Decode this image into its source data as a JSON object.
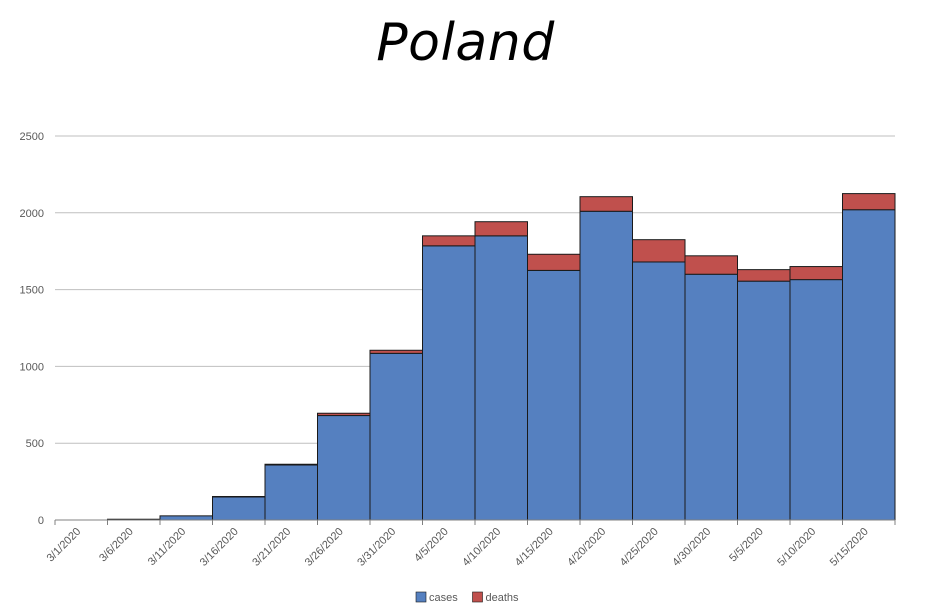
{
  "chart_data": {
    "type": "bar",
    "stacked": true,
    "title": "Poland",
    "xlabel": "",
    "ylabel": "",
    "ylim": [
      0,
      2500
    ],
    "yticks": [
      0,
      500,
      1000,
      1500,
      2000,
      2500
    ],
    "grid": true,
    "legend_position": "bottom",
    "categories": [
      "3/1/2020",
      "3/6/2020",
      "3/11/2020",
      "3/16/2020",
      "3/21/2020",
      "3/26/2020",
      "3/31/2020",
      "4/5/2020",
      "4/10/2020",
      "4/15/2020",
      "4/20/2020",
      "4/25/2020",
      "4/30/2020",
      "5/5/2020",
      "5/10/2020",
      "5/15/2020"
    ],
    "series": [
      {
        "name": "cases",
        "color": "#5580C0",
        "values": [
          0,
          5,
          27,
          150,
          358,
          680,
          1085,
          1785,
          1850,
          1625,
          2010,
          1680,
          1600,
          1555,
          1565,
          2020
        ]
      },
      {
        "name": "deaths",
        "color": "#C0504D",
        "values": [
          0,
          0,
          0,
          3,
          5,
          15,
          20,
          65,
          92,
          105,
          95,
          145,
          120,
          75,
          85,
          105
        ]
      }
    ]
  }
}
